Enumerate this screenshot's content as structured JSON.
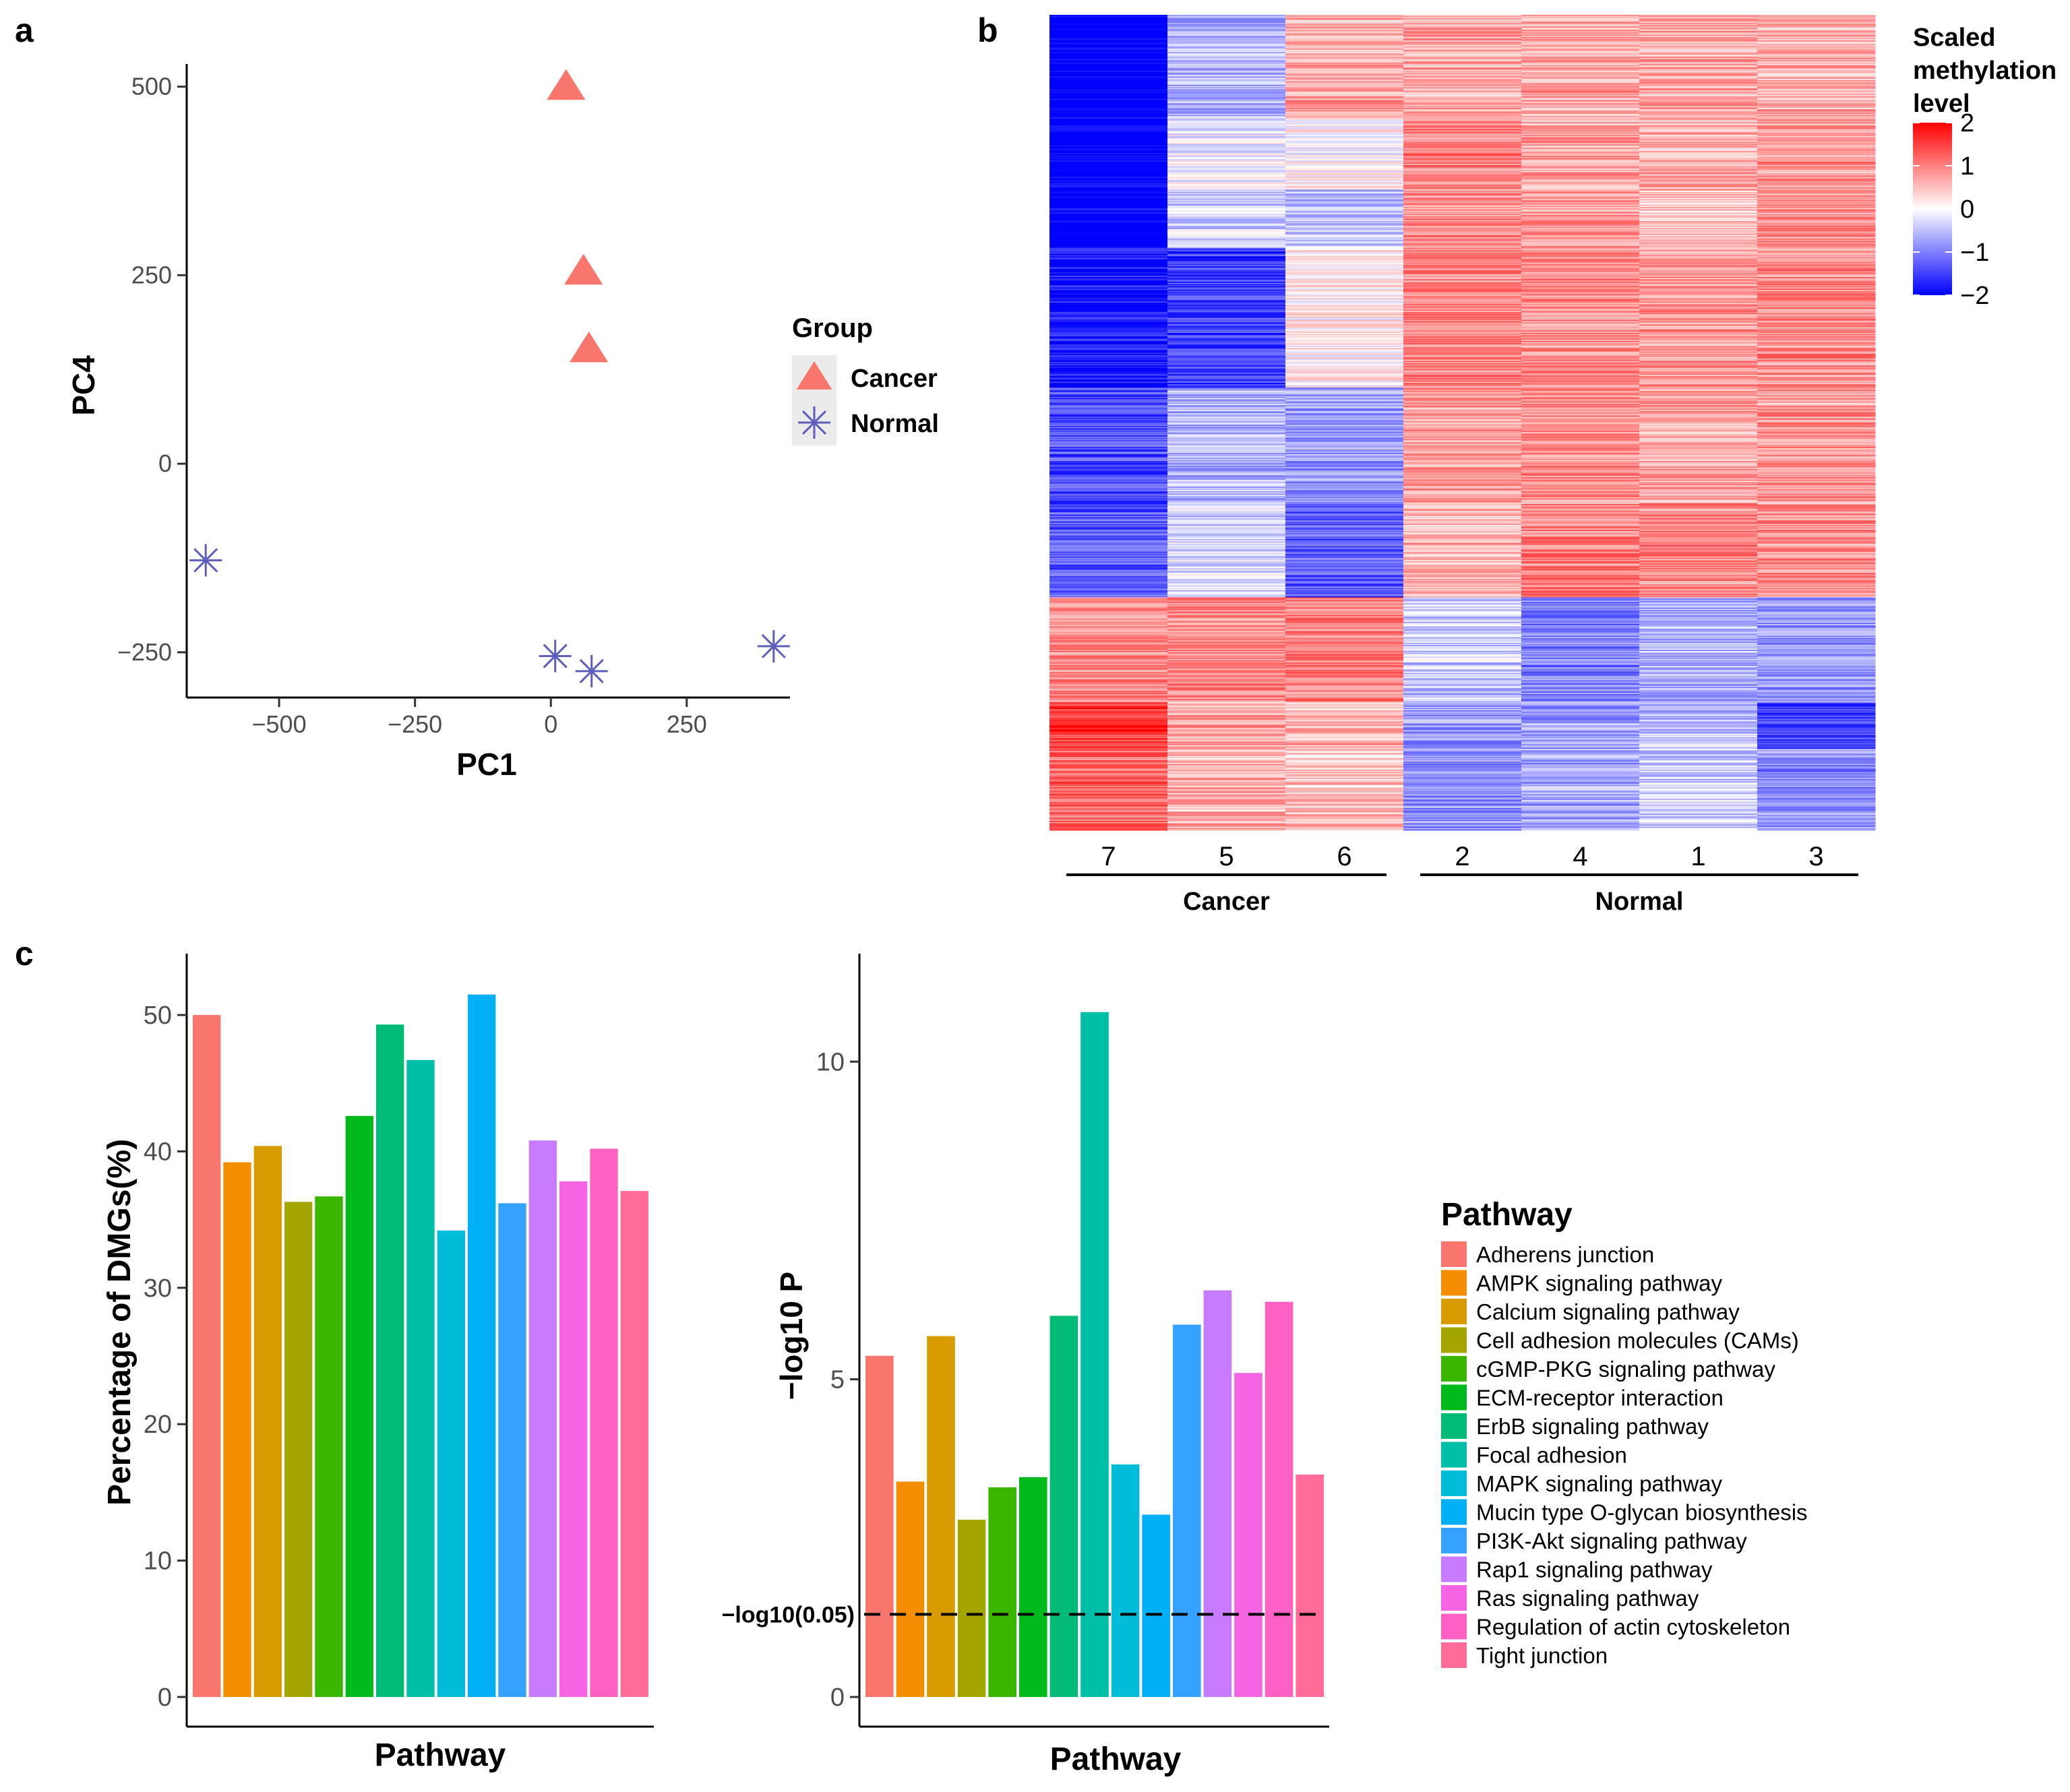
{
  "panels": {
    "a": "a",
    "b": "b",
    "c": "c"
  },
  "chart_data": [
    {
      "id": "pca",
      "type": "scatter",
      "panel": "a",
      "xlabel": "PC1",
      "ylabel": "PC4",
      "xlim": [
        -670,
        440
      ],
      "ylim": [
        -310,
        530
      ],
      "xticks": [
        -500,
        -250,
        0,
        250
      ],
      "yticks": [
        -250,
        0,
        250,
        500
      ],
      "xtick_labels": [
        "−500",
        "−250",
        "0",
        "250"
      ],
      "ytick_labels": [
        "−250",
        "0",
        "250",
        "500"
      ],
      "legend_title": "Group",
      "series": [
        {
          "name": "Cancer",
          "marker": "triangle",
          "color": "#f8766d",
          "points": [
            {
              "x": 28,
              "y": 500
            },
            {
              "x": 60,
              "y": 255
            },
            {
              "x": 70,
              "y": 152
            }
          ]
        },
        {
          "name": "Normal",
          "marker": "asterisk",
          "color": "#5d5dbb",
          "points": [
            {
              "x": -635,
              "y": -128
            },
            {
              "x": 8,
              "y": -255
            },
            {
              "x": 75,
              "y": -275
            },
            {
              "x": 410,
              "y": -242
            }
          ]
        }
      ]
    },
    {
      "id": "heatmap",
      "type": "heatmap",
      "panel": "b",
      "columns": [
        "7",
        "5",
        "6",
        "2",
        "4",
        "1",
        "3"
      ],
      "groups": [
        {
          "name": "Cancer",
          "columns": 3
        },
        {
          "name": "Normal",
          "columns": 4
        }
      ],
      "colorbar_title": [
        "Scaled",
        "methylation",
        "level"
      ],
      "colorbar_range": [
        -2,
        2
      ],
      "colorbar_ticks": [
        2,
        1,
        0,
        -1,
        -2
      ],
      "colorbar_tick_labels": [
        "2",
        "1",
        "0",
        "−1",
        "−2"
      ],
      "colors": {
        "low": "#0000ff",
        "mid": "#ffffff",
        "high": "#ff0000"
      },
      "row_blocks": [
        {
          "rows": 90,
          "means": [
            -2.2,
            -0.6,
            0.7,
            0.7,
            0.7,
            0.7,
            0.6
          ]
        },
        {
          "rows": 60,
          "means": [
            -2.2,
            -0.1,
            0.0,
            1.0,
            0.7,
            0.6,
            0.8
          ]
        },
        {
          "rows": 50,
          "means": [
            -2.2,
            -0.3,
            -0.5,
            0.9,
            0.8,
            0.5,
            0.9
          ]
        },
        {
          "rows": 120,
          "means": [
            -1.9,
            -1.5,
            0.1,
            0.9,
            0.9,
            0.8,
            0.9
          ]
        },
        {
          "rows": 100,
          "means": [
            -1.4,
            -0.6,
            -0.8,
            0.8,
            0.9,
            0.7,
            0.8
          ]
        },
        {
          "rows": 80,
          "means": [
            -1.3,
            -0.3,
            -1.3,
            0.6,
            1.0,
            0.9,
            0.9
          ]
        },
        {
          "rows": 90,
          "means": [
            0.9,
            0.9,
            1.0,
            -0.4,
            -1.0,
            -0.6,
            -0.8
          ]
        },
        {
          "rows": 40,
          "means": [
            1.6,
            0.7,
            0.6,
            -0.8,
            -0.8,
            -0.5,
            -1.4
          ]
        },
        {
          "rows": 70,
          "means": [
            1.2,
            0.6,
            0.5,
            -0.9,
            -0.7,
            -0.4,
            -0.9
          ]
        }
      ]
    },
    {
      "id": "pct-dmgs",
      "type": "bar",
      "panel": "c",
      "xlabel": "Pathway",
      "ylabel": "Percentage of DMGs(%)",
      "ylim": [
        0,
        54.5
      ],
      "yticks": [
        0,
        10,
        20,
        30,
        40,
        50
      ],
      "categories": [
        "Adherens junction",
        "AMPK signaling pathway",
        "Calcium signaling pathway",
        "Cell adhesion molecules (CAMs)",
        "cGMP-PKG signaling pathway",
        "ECM-receptor interaction",
        "ErbB signaling pathway",
        "Focal adhesion",
        "MAPK signaling pathway",
        "Mucin type O-glycan biosynthesis",
        "PI3K-Akt signaling pathway",
        "Rap1 signaling pathway",
        "Ras signaling pathway",
        "Regulation of actin cytoskeleton",
        "Tight junction"
      ],
      "values": [
        50.0,
        39.2,
        40.4,
        36.3,
        36.7,
        42.6,
        49.3,
        46.7,
        34.2,
        51.5,
        36.2,
        40.8,
        37.8,
        40.2,
        37.1
      ]
    },
    {
      "id": "neglog10p",
      "type": "bar",
      "panel": "c",
      "xlabel": "Pathway",
      "ylabel": "−log10 P",
      "ylim": [
        0,
        11.7
      ],
      "yticks": [
        0,
        5,
        10
      ],
      "threshold": {
        "value": 1.301,
        "label": "−log10(0.05)"
      },
      "categories": [
        "Adherens junction",
        "AMPK signaling pathway",
        "Calcium signaling pathway",
        "Cell adhesion molecules (CAMs)",
        "cGMP-PKG signaling pathway",
        "ECM-receptor interaction",
        "ErbB signaling pathway",
        "Focal adhesion",
        "MAPK signaling pathway",
        "Mucin type O-glycan biosynthesis",
        "PI3K-Akt signaling pathway",
        "Rap1 signaling pathway",
        "Ras signaling pathway",
        "Regulation of actin cytoskeleton",
        "Tight junction"
      ],
      "values": [
        5.37,
        3.39,
        5.68,
        2.79,
        3.3,
        3.46,
        6.0,
        10.78,
        3.66,
        2.87,
        5.86,
        6.4,
        5.1,
        6.22,
        3.5
      ]
    }
  ],
  "pathway_legend": {
    "title": "Pathway",
    "items": [
      {
        "label": "Adherens junction",
        "color": "#f8766d"
      },
      {
        "label": "AMPK signaling pathway",
        "color": "#f28e00"
      },
      {
        "label": "Calcium signaling pathway",
        "color": "#d89b00"
      },
      {
        "label": "Cell adhesion molecules (CAMs)",
        "color": "#a3a500"
      },
      {
        "label": "cGMP-PKG signaling pathway",
        "color": "#39b600"
      },
      {
        "label": "ECM-receptor interaction",
        "color": "#00b91a"
      },
      {
        "label": "ErbB signaling pathway",
        "color": "#00bb75"
      },
      {
        "label": "Focal adhesion",
        "color": "#00bfa8"
      },
      {
        "label": "MAPK signaling pathway",
        "color": "#00bcd8"
      },
      {
        "label": "Mucin type O-glycan biosynthesis",
        "color": "#00b0f6"
      },
      {
        "label": "PI3K-Akt signaling pathway",
        "color": "#35a2ff"
      },
      {
        "label": "Rap1 signaling pathway",
        "color": "#c77cff"
      },
      {
        "label": "Ras signaling pathway",
        "color": "#f564e3"
      },
      {
        "label": "Regulation of actin cytoskeleton",
        "color": "#ff61c3"
      },
      {
        "label": "Tight junction",
        "color": "#ff6c9a"
      }
    ]
  }
}
